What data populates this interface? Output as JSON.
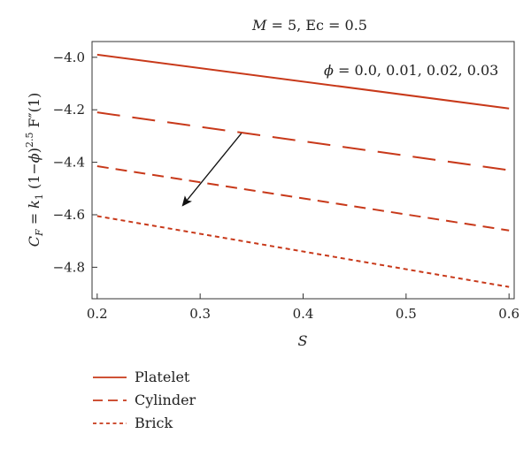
{
  "chart_data": {
    "type": "line",
    "title_parts": {
      "m_symbol": "M",
      "m_value": " = 5, Ec = 0.5"
    },
    "xlabel": "S",
    "ylabel_parts": {
      "c": "C",
      "c_sub": "F",
      "eq": " = ",
      "k": "k",
      "k_sub": "1",
      "paren_open": " (1−",
      "phi": "ϕ",
      "paren_close": ")",
      "exp": "2.5",
      "f": " F″(1)"
    },
    "x": [
      0.2,
      0.6
    ],
    "xlim": [
      0.195,
      0.605
    ],
    "ylim": [
      -4.92,
      -3.94
    ],
    "xticks": [
      0.2,
      0.3,
      0.4,
      0.5,
      0.6
    ],
    "xtick_labels": [
      "0.2",
      "0.3",
      "0.4",
      "0.5",
      "0.6"
    ],
    "yticks": [
      -4.8,
      -4.6,
      -4.4,
      -4.2,
      -4.0
    ],
    "ytick_labels": [
      "−4.8",
      "−4.6",
      "−4.4",
      "−4.2",
      "−4.0"
    ],
    "series": [
      {
        "name": "Platelet",
        "values": [
          -3.99,
          -4.195
        ],
        "style": "solid"
      },
      {
        "name": "Cylinder",
        "values": [
          -4.21,
          -4.43
        ],
        "style": "long-dash"
      },
      {
        "name": "",
        "values": [
          -4.415,
          -4.66
        ],
        "style": "medium-dash"
      },
      {
        "name": "Brick",
        "values": [
          -4.605,
          -4.875
        ],
        "style": "short-dash"
      }
    ],
    "annotation": {
      "phi_symbol": "ϕ",
      "text": " = 0.0, 0.01, 0.02, 0.03",
      "arrow_from": {
        "x": 0.34,
        "y": -4.29
      },
      "arrow_to": {
        "x": 0.283,
        "y": -4.565
      }
    },
    "legend_placement": "bottom-left, below plot",
    "grid": false,
    "line_color": "#c8391a"
  }
}
